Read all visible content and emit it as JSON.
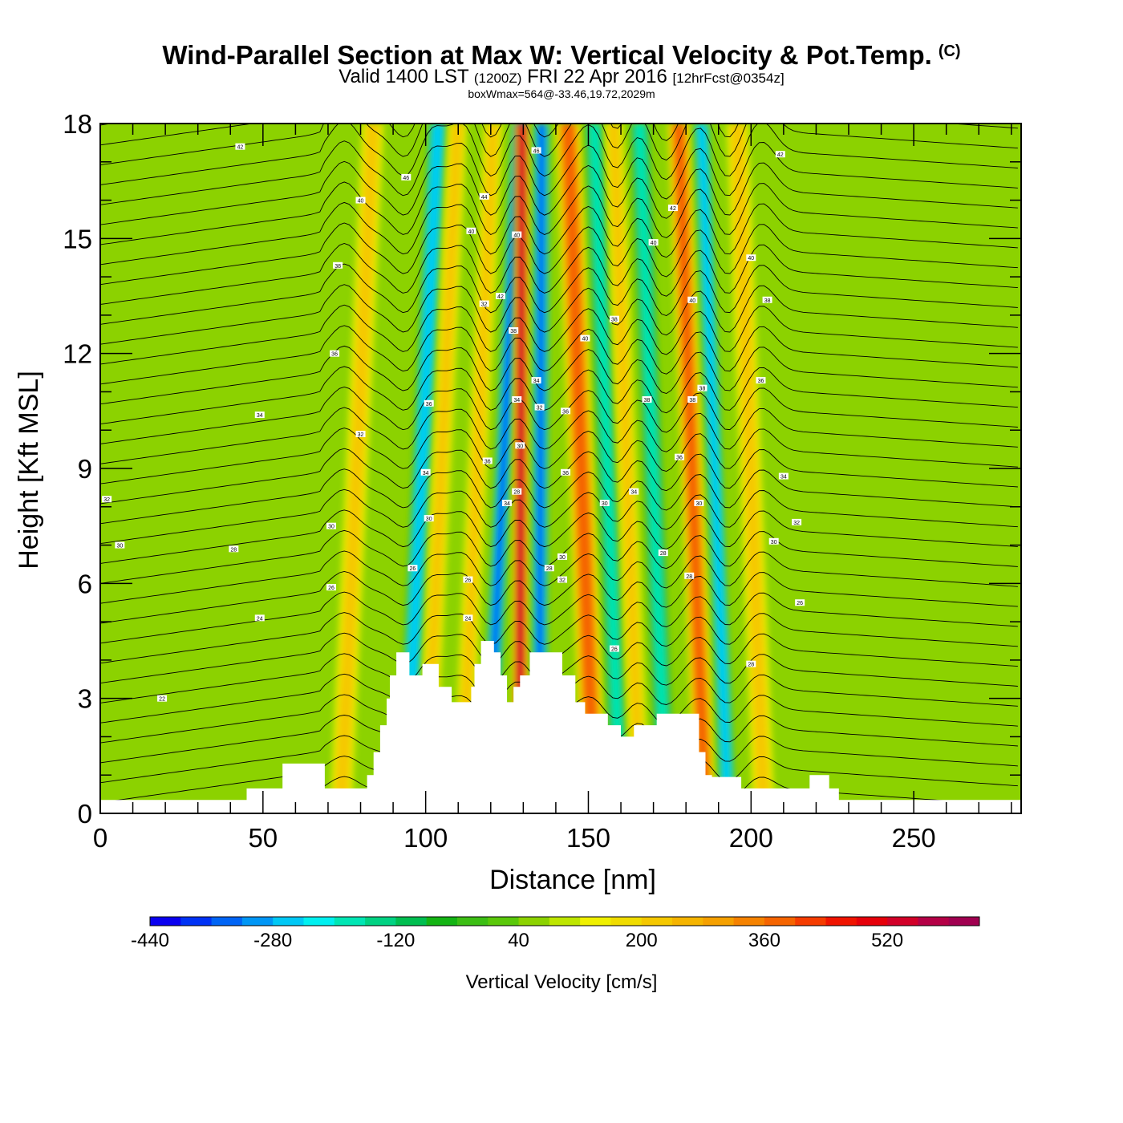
{
  "header": {
    "title": "Wind-Parallel Section at Max W: Vertical Velocity & Pot.Temp.",
    "copyright": "(C)",
    "valid_prefix": "Valid 1400 LST",
    "valid_utc": "(1200Z)",
    "valid_date": "FRI 22 Apr 2016",
    "forecast": "[12hrFcst@0354z]",
    "boxwmax": "boxWmax=564@-33.46,19.72,2029m"
  },
  "chart_data": {
    "type": "heatmap",
    "xlabel": "Distance [nm]",
    "ylabel": "Height [Kft MSL]",
    "xlim": [
      0,
      283
    ],
    "ylim": [
      0,
      18
    ],
    "x_ticks": [
      "0",
      "50",
      "100",
      "150",
      "200",
      "250"
    ],
    "y_ticks": [
      "0",
      "3",
      "6",
      "9",
      "12",
      "15",
      "18"
    ],
    "colorbar": {
      "label": "Vertical Velocity [cm/s]",
      "tick_labels": [
        "-440",
        "-280",
        "-120",
        "40",
        "200",
        "360",
        "520"
      ],
      "min": -440,
      "max": 640,
      "colors": [
        "#0a00f0",
        "#0032f5",
        "#0064f5",
        "#0096f5",
        "#00c8f5",
        "#00f0f0",
        "#00e6b4",
        "#00d282",
        "#00be50",
        "#14b414",
        "#3cbe14",
        "#5ac80a",
        "#8cd200",
        "#bee600",
        "#f0f000",
        "#f0dc00",
        "#f5c800",
        "#f5b400",
        "#f5a000",
        "#f58200",
        "#f56400",
        "#f53c00",
        "#f01400",
        "#e6000a",
        "#d20028",
        "#b40046",
        "#a00050"
      ]
    },
    "velocity_bands": [
      {
        "x": 75,
        "w": 3.5,
        "value": 200
      },
      {
        "x": 95,
        "w": 3,
        "value": -280
      },
      {
        "x": 101,
        "w": 3,
        "value": 200
      },
      {
        "x": 112,
        "w": 3,
        "value": 200
      },
      {
        "x": 120,
        "w": 2.5,
        "value": -360
      },
      {
        "x": 129,
        "w": 2.5,
        "value": 520
      },
      {
        "x": 135,
        "w": 2.5,
        "value": -360
      },
      {
        "x": 151,
        "w": 4,
        "value": 360
      },
      {
        "x": 159,
        "w": 3,
        "value": -200
      },
      {
        "x": 165,
        "w": 3,
        "value": 200
      },
      {
        "x": 173,
        "w": 3,
        "value": -200
      },
      {
        "x": 185,
        "w": 3.5,
        "value": 360
      },
      {
        "x": 192,
        "w": 2.5,
        "value": -280
      },
      {
        "x": 203,
        "w": 3.5,
        "value": 200
      }
    ],
    "terrain_kft": [
      [
        0,
        0.35
      ],
      [
        45,
        0.35
      ],
      [
        45,
        0.65
      ],
      [
        56,
        0.65
      ],
      [
        56,
        1.3
      ],
      [
        69,
        1.3
      ],
      [
        69,
        0.65
      ],
      [
        82,
        0.65
      ],
      [
        82,
        1.0
      ],
      [
        84,
        1.0
      ],
      [
        84,
        1.6
      ],
      [
        86,
        1.6
      ],
      [
        86,
        2.3
      ],
      [
        88,
        2.3
      ],
      [
        88,
        3.0
      ],
      [
        89,
        3.0
      ],
      [
        89,
        3.6
      ],
      [
        91,
        3.6
      ],
      [
        91,
        4.2
      ],
      [
        95,
        4.2
      ],
      [
        95,
        3.6
      ],
      [
        99,
        3.6
      ],
      [
        99,
        3.9
      ],
      [
        104,
        3.9
      ],
      [
        104,
        3.3
      ],
      [
        108,
        3.3
      ],
      [
        108,
        2.9
      ],
      [
        114,
        2.9
      ],
      [
        114,
        3.3
      ],
      [
        115,
        3.3
      ],
      [
        115,
        3.9
      ],
      [
        117,
        3.9
      ],
      [
        117,
        4.5
      ],
      [
        121,
        4.5
      ],
      [
        121,
        4.2
      ],
      [
        123,
        4.2
      ],
      [
        123,
        3.6
      ],
      [
        125,
        3.6
      ],
      [
        125,
        2.9
      ],
      [
        127,
        2.9
      ],
      [
        127,
        3.3
      ],
      [
        129,
        3.3
      ],
      [
        129,
        3.6
      ],
      [
        132,
        3.6
      ],
      [
        132,
        4.2
      ],
      [
        142,
        4.2
      ],
      [
        142,
        3.6
      ],
      [
        146,
        3.6
      ],
      [
        146,
        2.9
      ],
      [
        149,
        2.9
      ],
      [
        149,
        2.6
      ],
      [
        156,
        2.6
      ],
      [
        156,
        2.3
      ],
      [
        160,
        2.3
      ],
      [
        160,
        2.0
      ],
      [
        164,
        2.0
      ],
      [
        164,
        2.3
      ],
      [
        171,
        2.3
      ],
      [
        171,
        2.6
      ],
      [
        184,
        2.6
      ],
      [
        184,
        1.6
      ],
      [
        186,
        1.6
      ],
      [
        186,
        1.0
      ],
      [
        188,
        1.0
      ],
      [
        188,
        0.95
      ],
      [
        197,
        0.95
      ],
      [
        197,
        0.65
      ],
      [
        218,
        0.65
      ],
      [
        218,
        1.0
      ],
      [
        224,
        1.0
      ],
      [
        224,
        0.65
      ],
      [
        227,
        0.65
      ],
      [
        227,
        0.35
      ],
      [
        283,
        0.35
      ]
    ],
    "isentrope_labels": [
      {
        "x": 2,
        "y": 8.2,
        "t": "32"
      },
      {
        "x": 6,
        "y": 7.0,
        "t": "30"
      },
      {
        "x": 19,
        "y": 3.0,
        "t": "22"
      },
      {
        "x": 43,
        "y": 17.4,
        "t": "42"
      },
      {
        "x": 49,
        "y": 10.4,
        "t": "34"
      },
      {
        "x": 41,
        "y": 6.9,
        "t": "28"
      },
      {
        "x": 49,
        "y": 5.1,
        "t": "24"
      },
      {
        "x": 73,
        "y": 14.3,
        "t": "38"
      },
      {
        "x": 72,
        "y": 12.0,
        "t": "36"
      },
      {
        "x": 80,
        "y": 9.9,
        "t": "32"
      },
      {
        "x": 71,
        "y": 7.5,
        "t": "30"
      },
      {
        "x": 71,
        "y": 5.9,
        "t": "26"
      },
      {
        "x": 80,
        "y": 16.0,
        "t": "40"
      },
      {
        "x": 94,
        "y": 16.6,
        "t": "46"
      },
      {
        "x": 101,
        "y": 10.7,
        "t": "36"
      },
      {
        "x": 100,
        "y": 8.9,
        "t": "34"
      },
      {
        "x": 101,
        "y": 7.7,
        "t": "30"
      },
      {
        "x": 96,
        "y": 6.4,
        "t": "26"
      },
      {
        "x": 114,
        "y": 15.2,
        "t": "40"
      },
      {
        "x": 118,
        "y": 16.1,
        "t": "44"
      },
      {
        "x": 118,
        "y": 13.3,
        "t": "32"
      },
      {
        "x": 123,
        "y": 13.5,
        "t": "42"
      },
      {
        "x": 127,
        "y": 12.6,
        "t": "38"
      },
      {
        "x": 128,
        "y": 15.1,
        "t": "40"
      },
      {
        "x": 134,
        "y": 17.3,
        "t": "46"
      },
      {
        "x": 134,
        "y": 11.3,
        "t": "34"
      },
      {
        "x": 128,
        "y": 10.8,
        "t": "34"
      },
      {
        "x": 129,
        "y": 9.6,
        "t": "30"
      },
      {
        "x": 128,
        "y": 8.4,
        "t": "28"
      },
      {
        "x": 125,
        "y": 8.1,
        "t": "34"
      },
      {
        "x": 119,
        "y": 9.2,
        "t": "36"
      },
      {
        "x": 113,
        "y": 6.1,
        "t": "26"
      },
      {
        "x": 113,
        "y": 5.1,
        "t": "24"
      },
      {
        "x": 135,
        "y": 10.6,
        "t": "32"
      },
      {
        "x": 143,
        "y": 10.5,
        "t": "36"
      },
      {
        "x": 143,
        "y": 8.9,
        "t": "36"
      },
      {
        "x": 138,
        "y": 6.4,
        "t": "28"
      },
      {
        "x": 142,
        "y": 6.7,
        "t": "30"
      },
      {
        "x": 142,
        "y": 6.1,
        "t": "32"
      },
      {
        "x": 149,
        "y": 12.4,
        "t": "40"
      },
      {
        "x": 158,
        "y": 12.9,
        "t": "38"
      },
      {
        "x": 155,
        "y": 8.1,
        "t": "30"
      },
      {
        "x": 164,
        "y": 8.4,
        "t": "34"
      },
      {
        "x": 158,
        "y": 4.3,
        "t": "26"
      },
      {
        "x": 170,
        "y": 14.9,
        "t": "40"
      },
      {
        "x": 176,
        "y": 15.8,
        "t": "42"
      },
      {
        "x": 168,
        "y": 10.8,
        "t": "38"
      },
      {
        "x": 173,
        "y": 6.8,
        "t": "28"
      },
      {
        "x": 182,
        "y": 13.4,
        "t": "40"
      },
      {
        "x": 182,
        "y": 10.8,
        "t": "38"
      },
      {
        "x": 185,
        "y": 11.1,
        "t": "38"
      },
      {
        "x": 178,
        "y": 9.3,
        "t": "36"
      },
      {
        "x": 184,
        "y": 8.1,
        "t": "30"
      },
      {
        "x": 181,
        "y": 6.2,
        "t": "28"
      },
      {
        "x": 200,
        "y": 14.5,
        "t": "40"
      },
      {
        "x": 205,
        "y": 13.4,
        "t": "38"
      },
      {
        "x": 203,
        "y": 11.3,
        "t": "36"
      },
      {
        "x": 210,
        "y": 8.8,
        "t": "34"
      },
      {
        "x": 214,
        "y": 7.6,
        "t": "32"
      },
      {
        "x": 207,
        "y": 7.1,
        "t": "30"
      },
      {
        "x": 215,
        "y": 5.5,
        "t": "26"
      },
      {
        "x": 200,
        "y": 3.9,
        "t": "28"
      },
      {
        "x": 209,
        "y": 17.2,
        "t": "42"
      }
    ]
  }
}
